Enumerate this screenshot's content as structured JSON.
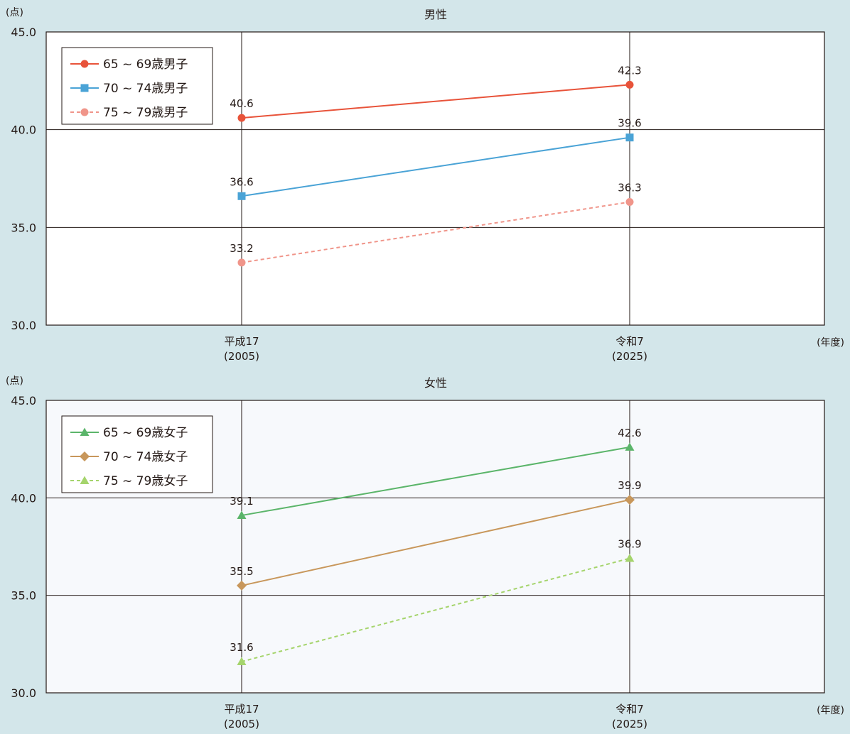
{
  "chart_data": [
    {
      "type": "line",
      "title": "男性",
      "y_unit": "(点)",
      "x_unit": "(年度)",
      "ylim": [
        30.0,
        45.0
      ],
      "yticks": [
        "30.0",
        "35.0",
        "40.0",
        "45.0"
      ],
      "grid": true,
      "legend_position": "top-left",
      "plot_background": "#ffffff",
      "categories": [
        {
          "line1": "平成17",
          "line2": "(2005)"
        },
        {
          "line1": "令和7",
          "line2": "(2025)"
        }
      ],
      "series": [
        {
          "name": "65 ~ 69歳男子",
          "values": [
            40.6,
            42.3
          ],
          "labels": [
            "40.6",
            "42.3"
          ],
          "color": "#e8533a",
          "marker": "circle",
          "dashed": false
        },
        {
          "name": "70 ~ 74歳男子",
          "values": [
            36.6,
            39.6
          ],
          "labels": [
            "36.6",
            "39.6"
          ],
          "color": "#4aa3d6",
          "marker": "square",
          "dashed": false
        },
        {
          "name": "75 ~ 79歳男子",
          "values": [
            33.2,
            36.3
          ],
          "labels": [
            "33.2",
            "36.3"
          ],
          "color": "#f0958a",
          "marker": "circle",
          "dashed": true
        }
      ]
    },
    {
      "type": "line",
      "title": "女性",
      "y_unit": "(点)",
      "x_unit": "(年度)",
      "ylim": [
        30.0,
        45.0
      ],
      "yticks": [
        "30.0",
        "35.0",
        "40.0",
        "45.0"
      ],
      "grid": true,
      "legend_position": "top-left",
      "plot_background": "#f7f9fc",
      "categories": [
        {
          "line1": "平成17",
          "line2": "(2005)"
        },
        {
          "line1": "令和7",
          "line2": "(2025)"
        }
      ],
      "series": [
        {
          "name": "65 ~ 69歳女子",
          "values": [
            39.1,
            42.6
          ],
          "labels": [
            "39.1",
            "42.6"
          ],
          "color": "#5bb56a",
          "marker": "triangle",
          "dashed": false
        },
        {
          "name": "70 ~ 74歳女子",
          "values": [
            35.5,
            39.9
          ],
          "labels": [
            "35.5",
            "39.9"
          ],
          "color": "#c8975b",
          "marker": "diamond",
          "dashed": false
        },
        {
          "name": "75 ~ 79歳女子",
          "values": [
            31.6,
            36.9
          ],
          "labels": [
            "31.6",
            "36.9"
          ],
          "color": "#a5d46c",
          "marker": "triangle",
          "dashed": true
        }
      ]
    }
  ]
}
